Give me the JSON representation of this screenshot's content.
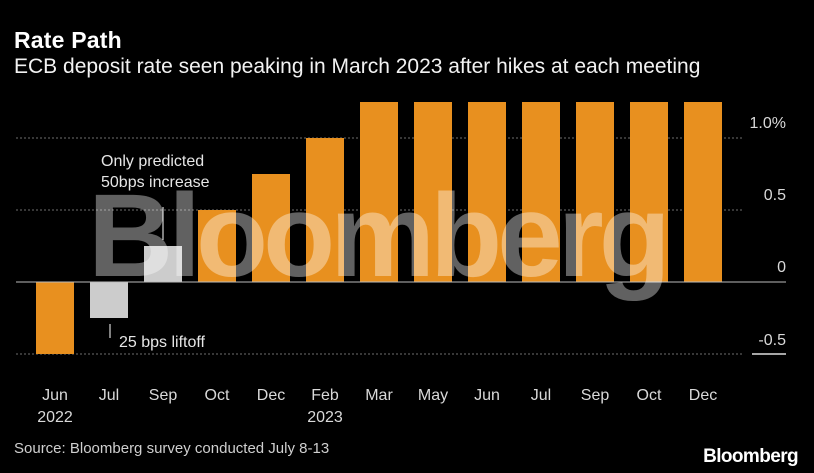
{
  "title": "Rate Path",
  "subtitle": "ECB deposit rate seen peaking in March 2023 after hikes at each meeting",
  "source": "Source: Bloomberg survey conducted July 8-13",
  "brand": "Bloomberg",
  "watermark": "Bloomberg",
  "colors": {
    "background": "#000000",
    "bar": "#e8901f",
    "bar_highlight": "#cccccc",
    "grid": "#6e6e6e",
    "zero_line": "#bbbbbb"
  },
  "annotations": {
    "increase": [
      "Only predicted",
      "50bps increase"
    ],
    "liftoff": "25 bps liftoff"
  },
  "chart_data": {
    "type": "bar",
    "categories": [
      "Jun",
      "Jul",
      "Sep",
      "Oct",
      "Dec",
      "Feb",
      "Mar",
      "May",
      "Jun",
      "Jul",
      "Sep",
      "Oct",
      "Dec"
    ],
    "year_labels": [
      "2022",
      "",
      "",
      "",
      "",
      "2023",
      "",
      "",
      "",
      "",
      "",
      "",
      ""
    ],
    "values": [
      -0.5,
      -0.25,
      0.25,
      0.5,
      0.75,
      1.0,
      1.25,
      1.25,
      1.25,
      1.25,
      1.25,
      1.25,
      1.25
    ],
    "highlighted": [
      false,
      true,
      true,
      false,
      false,
      false,
      false,
      false,
      false,
      false,
      false,
      false,
      false
    ],
    "y_ticks": [
      1.0,
      0.5,
      0,
      -0.5
    ],
    "y_tick_labels": [
      "1.0%",
      "0.5",
      "0",
      "-0.5"
    ],
    "ylim": [
      -0.5,
      1.25
    ],
    "grid": true,
    "y_axis_position": "right"
  }
}
